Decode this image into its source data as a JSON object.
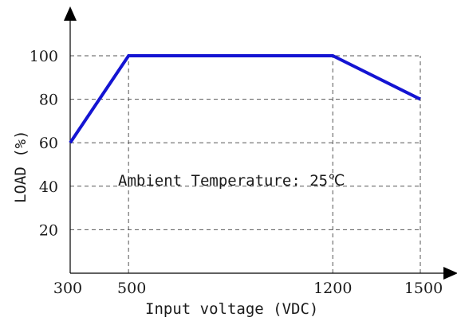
{
  "chart_data": {
    "type": "line",
    "xlabel": "Input voltage (VDC)",
    "ylabel": "LOAD (%)",
    "annotation": "Ambient Temperature: 25℃",
    "x_ticks": [
      300,
      500,
      1200,
      1500
    ],
    "y_ticks": [
      20,
      40,
      60,
      80,
      100
    ],
    "xlim": [
      300,
      1500
    ],
    "ylim": [
      0,
      100
    ],
    "grid": "dashed",
    "series": [
      {
        "color": "#1414d2",
        "x": [
          300,
          500,
          1200,
          1500
        ],
        "y": [
          60,
          100,
          100,
          80
        ]
      }
    ]
  }
}
